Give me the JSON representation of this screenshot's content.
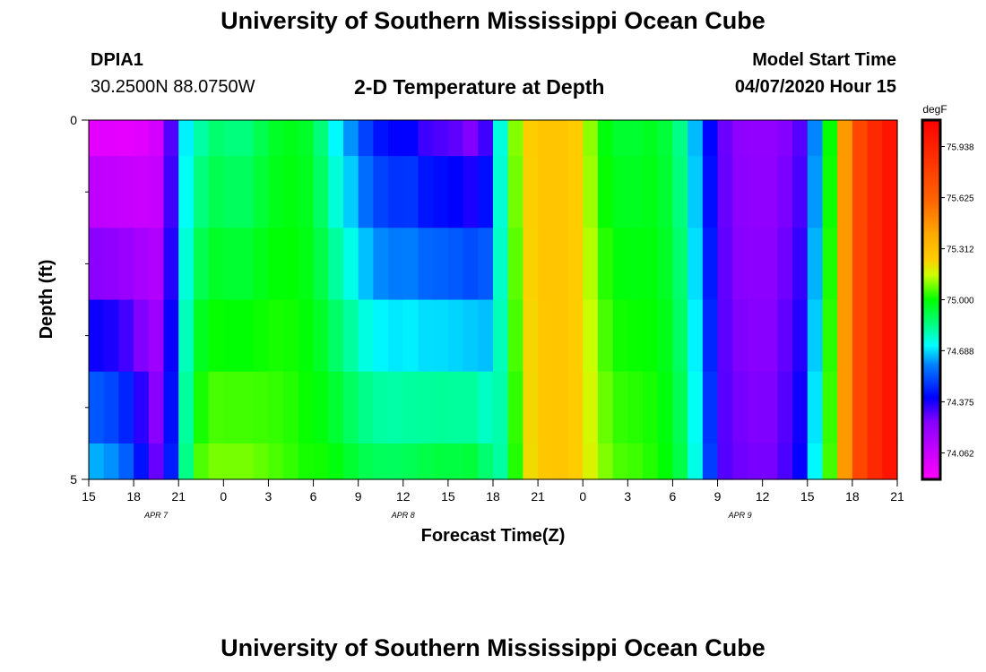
{
  "header": {
    "title_top": "University of Southern Mississippi Ocean Cube",
    "title_bottom": "University of Southern Mississippi Ocean Cube",
    "station_id": "DPIA1",
    "station_coords": "30.2500N 88.0750W",
    "plot_title": "2-D Temperature at Depth",
    "model_start_label": "Model Start Time",
    "model_start_value": "04/07/2020 Hour 15"
  },
  "chart_data": {
    "type": "heatmap",
    "title": "2-D Temperature at Depth",
    "xlabel": "Forecast Time(Z)",
    "ylabel": "Depth (ft)",
    "x_start_hour": 0,
    "x_end_hour": 54,
    "x_ticks": [
      {
        "hour": 0,
        "label": "15"
      },
      {
        "hour": 3,
        "label": "18"
      },
      {
        "hour": 6,
        "label": "21"
      },
      {
        "hour": 9,
        "label": "0"
      },
      {
        "hour": 12,
        "label": "3"
      },
      {
        "hour": 15,
        "label": "6"
      },
      {
        "hour": 18,
        "label": "9"
      },
      {
        "hour": 21,
        "label": "12"
      },
      {
        "hour": 24,
        "label": "15"
      },
      {
        "hour": 27,
        "label": "18"
      },
      {
        "hour": 30,
        "label": "21"
      },
      {
        "hour": 33,
        "label": "0"
      },
      {
        "hour": 36,
        "label": "3"
      },
      {
        "hour": 39,
        "label": "6"
      },
      {
        "hour": 42,
        "label": "9"
      },
      {
        "hour": 45,
        "label": "12"
      },
      {
        "hour": 48,
        "label": "15"
      },
      {
        "hour": 51,
        "label": "18"
      },
      {
        "hour": 54,
        "label": "21"
      }
    ],
    "date_labels": [
      {
        "hour": 4.5,
        "label": "APR 7"
      },
      {
        "hour": 21,
        "label": "APR 8"
      },
      {
        "hour": 43.5,
        "label": "APR 9"
      }
    ],
    "ylim": [
      0,
      5
    ],
    "y_ticks": [
      {
        "value": 0,
        "label": "0"
      },
      {
        "value": 5,
        "label": "5"
      }
    ],
    "y_minor_ticks": [
      1,
      2,
      3,
      4
    ],
    "depth_bands": [
      {
        "top": 0.0,
        "bottom": 0.5
      },
      {
        "top": 0.5,
        "bottom": 1.5
      },
      {
        "top": 1.5,
        "bottom": 2.5
      },
      {
        "top": 2.5,
        "bottom": 3.5
      },
      {
        "top": 3.5,
        "bottom": 4.5
      },
      {
        "top": 4.5,
        "bottom": 5.0
      }
    ],
    "time_series": [
      {
        "hour": 0,
        "surface": 73.95,
        "bottom": 74.68
      },
      {
        "hour": 1,
        "surface": 73.95,
        "bottom": 74.65
      },
      {
        "hour": 2,
        "surface": 73.95,
        "bottom": 74.58
      },
      {
        "hour": 3,
        "surface": 73.97,
        "bottom": 74.45
      },
      {
        "hour": 4,
        "surface": 74.02,
        "bottom": 74.3
      },
      {
        "hour": 5,
        "surface": 74.3,
        "bottom": 74.45
      },
      {
        "hour": 6,
        "surface": 74.7,
        "bottom": 74.85
      },
      {
        "hour": 7,
        "surface": 74.8,
        "bottom": 75.07
      },
      {
        "hour": 8,
        "surface": 74.86,
        "bottom": 75.1
      },
      {
        "hour": 9,
        "surface": 74.84,
        "bottom": 75.1
      },
      {
        "hour": 10,
        "surface": 74.84,
        "bottom": 75.1
      },
      {
        "hour": 11,
        "surface": 74.9,
        "bottom": 75.08
      },
      {
        "hour": 12,
        "surface": 74.95,
        "bottom": 75.06
      },
      {
        "hour": 13,
        "surface": 74.97,
        "bottom": 75.04
      },
      {
        "hour": 14,
        "surface": 74.95,
        "bottom": 75.02
      },
      {
        "hour": 15,
        "surface": 74.85,
        "bottom": 75.02
      },
      {
        "hour": 16,
        "surface": 74.7,
        "bottom": 75.0
      },
      {
        "hour": 17,
        "surface": 74.6,
        "bottom": 74.96
      },
      {
        "hour": 18,
        "surface": 74.48,
        "bottom": 74.93
      },
      {
        "hour": 19,
        "surface": 74.4,
        "bottom": 74.92
      },
      {
        "hour": 20,
        "surface": 74.37,
        "bottom": 74.92
      },
      {
        "hour": 21,
        "surface": 74.37,
        "bottom": 74.93
      },
      {
        "hour": 22,
        "surface": 74.3,
        "bottom": 74.95
      },
      {
        "hour": 23,
        "surface": 74.28,
        "bottom": 74.96
      },
      {
        "hour": 24,
        "surface": 74.26,
        "bottom": 74.96
      },
      {
        "hour": 25,
        "surface": 74.22,
        "bottom": 74.97
      },
      {
        "hour": 26,
        "surface": 74.3,
        "bottom": 74.9
      },
      {
        "hour": 27,
        "surface": 74.75,
        "bottom": 74.82
      },
      {
        "hour": 28,
        "surface": 75.1,
        "bottom": 75.02
      },
      {
        "hour": 29,
        "surface": 75.25,
        "bottom": 75.22
      },
      {
        "hour": 30,
        "surface": 75.28,
        "bottom": 75.27
      },
      {
        "hour": 31,
        "surface": 75.28,
        "bottom": 75.28
      },
      {
        "hour": 32,
        "surface": 75.25,
        "bottom": 75.25
      },
      {
        "hour": 33,
        "surface": 75.1,
        "bottom": 75.18
      },
      {
        "hour": 34,
        "surface": 74.98,
        "bottom": 75.1
      },
      {
        "hour": 35,
        "surface": 74.94,
        "bottom": 75.06
      },
      {
        "hour": 36,
        "surface": 74.94,
        "bottom": 75.05
      },
      {
        "hour": 37,
        "surface": 74.96,
        "bottom": 75.03
      },
      {
        "hour": 38,
        "surface": 74.93,
        "bottom": 75.0
      },
      {
        "hour": 39,
        "surface": 74.84,
        "bottom": 74.92
      },
      {
        "hour": 40,
        "surface": 74.65,
        "bottom": 74.75
      },
      {
        "hour": 41,
        "surface": 74.4,
        "bottom": 74.5
      },
      {
        "hour": 42,
        "surface": 74.28,
        "bottom": 74.31
      },
      {
        "hour": 43,
        "surface": 74.23,
        "bottom": 74.28
      },
      {
        "hour": 44,
        "surface": 74.22,
        "bottom": 74.27
      },
      {
        "hour": 45,
        "surface": 74.22,
        "bottom": 74.27
      },
      {
        "hour": 46,
        "surface": 74.25,
        "bottom": 74.32
      },
      {
        "hour": 47,
        "surface": 74.3,
        "bottom": 74.4
      },
      {
        "hour": 48,
        "surface": 74.6,
        "bottom": 74.72
      },
      {
        "hour": 49,
        "surface": 75.0,
        "bottom": 75.05
      },
      {
        "hour": 50,
        "surface": 75.45,
        "bottom": 75.45
      },
      {
        "hour": 51,
        "surface": 75.75,
        "bottom": 75.75
      },
      {
        "hour": 52,
        "surface": 75.9,
        "bottom": 75.9
      },
      {
        "hour": 53,
        "surface": 76.0,
        "bottom": 76.0
      },
      {
        "hour": 54,
        "surface": 76.05,
        "bottom": 76.05
      }
    ],
    "colorbar": {
      "unit_label": "degF",
      "min": 73.9,
      "max": 76.1,
      "tick_values": [
        74.062,
        74.375,
        74.688,
        75.0,
        75.312,
        75.625,
        75.938
      ],
      "tick_labels": [
        "74.062",
        "74.375",
        "74.688",
        "75.000",
        "75.312",
        "75.625",
        "75.938"
      ],
      "color_stops": [
        {
          "value": 73.9,
          "color": "#ff00ff"
        },
        {
          "value": 74.06,
          "color": "#cc00ff"
        },
        {
          "value": 74.25,
          "color": "#8800ff"
        },
        {
          "value": 74.4,
          "color": "#0000ff"
        },
        {
          "value": 74.6,
          "color": "#0080ff"
        },
        {
          "value": 74.72,
          "color": "#00ffff"
        },
        {
          "value": 74.85,
          "color": "#00ff80"
        },
        {
          "value": 75.0,
          "color": "#00ff00"
        },
        {
          "value": 75.15,
          "color": "#ccff00"
        },
        {
          "value": 75.25,
          "color": "#ffcc00"
        },
        {
          "value": 75.4,
          "color": "#ffaa00"
        },
        {
          "value": 75.6,
          "color": "#ff6600"
        },
        {
          "value": 75.85,
          "color": "#ff3300"
        },
        {
          "value": 76.1,
          "color": "#ff0000"
        }
      ]
    }
  }
}
